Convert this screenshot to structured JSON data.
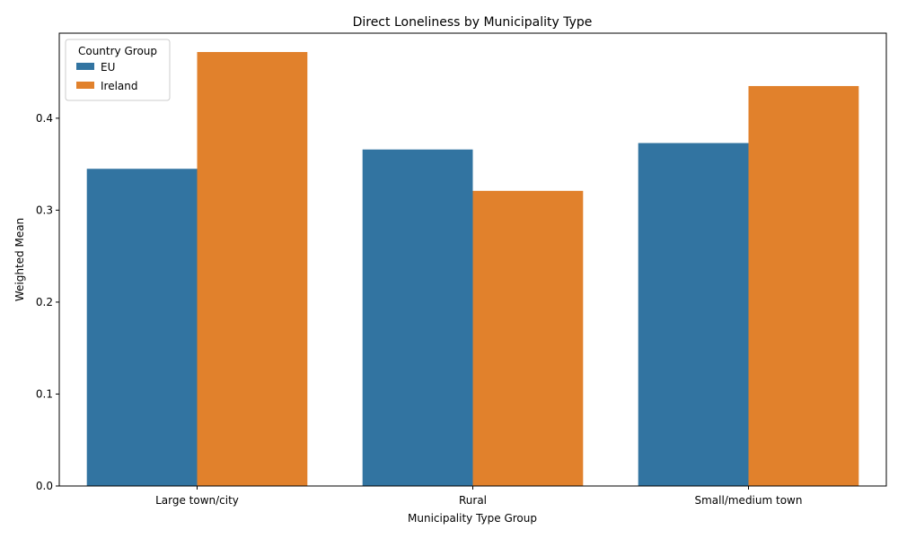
{
  "chart_data": {
    "type": "bar",
    "title": "Direct Loneliness by Municipality Type",
    "xlabel": "Municipality Type Group",
    "ylabel": "Weighted Mean",
    "categories": [
      "Large town/city",
      "Rural",
      "Small/medium town"
    ],
    "series": [
      {
        "name": "EU",
        "color": "#3274a1",
        "values": [
          0.345,
          0.366,
          0.373
        ]
      },
      {
        "name": "Ireland",
        "color": "#e1812c",
        "values": [
          0.472,
          0.321,
          0.435
        ]
      }
    ],
    "ylim": [
      0,
      0.4925
    ],
    "yticks": [
      "0.0",
      "0.1",
      "0.2",
      "0.3",
      "0.4"
    ],
    "ytick_values": [
      0,
      0.1,
      0.2,
      0.3,
      0.4
    ],
    "grid": false,
    "legend": {
      "title": "Country Group",
      "placement": "top-left"
    }
  }
}
